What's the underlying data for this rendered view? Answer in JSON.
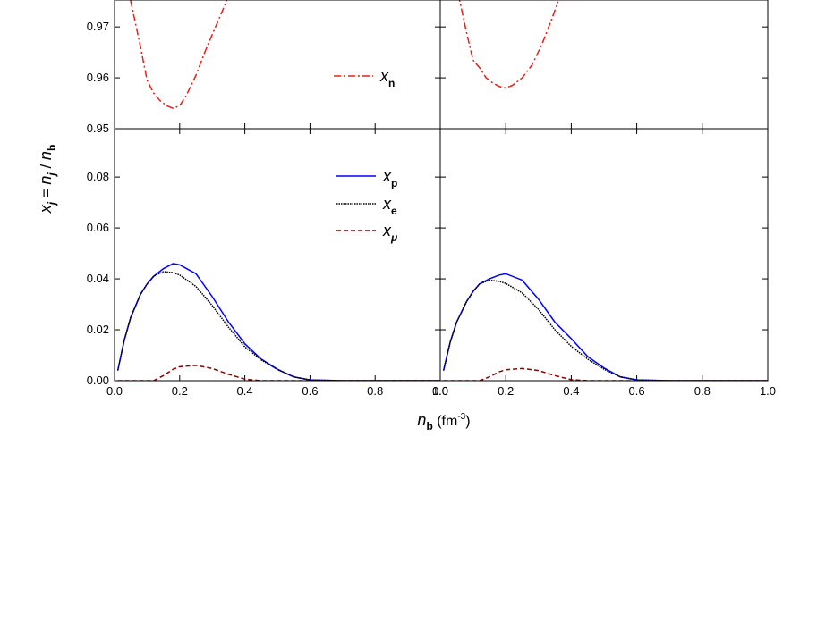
{
  "chart_data": [
    {
      "type": "line",
      "xlim": [
        0,
        1
      ],
      "ylim": [
        0.95,
        0.9753
      ],
      "yticks": [
        0.95,
        0.96,
        0.97
      ],
      "x": [
        0.04,
        0.06,
        0.08,
        0.1,
        0.12,
        0.14,
        0.16,
        0.18,
        0.2,
        0.22,
        0.25,
        0.28,
        0.31,
        0.34,
        0.36
      ],
      "series": [
        {
          "name": [
            "x",
            "n"
          ],
          "color": "#e8201a",
          "dash": "8,3,2,3",
          "values": [
            0.978,
            0.972,
            0.966,
            0.9595,
            0.957,
            0.9555,
            0.9545,
            0.954,
            0.9545,
            0.9565,
            0.9605,
            0.9655,
            0.97,
            0.9745,
            0.978
          ]
        }
      ]
    },
    {
      "type": "line",
      "xlim": [
        0,
        1
      ],
      "ylim": [
        0.95,
        0.9753
      ],
      "x": [
        0.04,
        0.06,
        0.08,
        0.1,
        0.12,
        0.14,
        0.16,
        0.18,
        0.2,
        0.22,
        0.25,
        0.28,
        0.31,
        0.34,
        0.36
      ],
      "series": [
        {
          "color": "#e8201a",
          "dash": "8,3,2,3",
          "values": [
            0.979,
            0.975,
            0.969,
            0.9635,
            0.962,
            0.96,
            0.959,
            0.9583,
            0.958,
            0.9585,
            0.96,
            0.9625,
            0.9665,
            0.9715,
            0.975
          ]
        }
      ]
    },
    {
      "type": "line",
      "xlim": [
        0,
        1
      ],
      "ylim": [
        0,
        0.099
      ],
      "xticks": [
        {
          "value": 0,
          "label": "0.0"
        },
        0.2,
        0.4,
        0.6,
        0.8,
        {
          "value": 1,
          "label": "1.0"
        }
      ],
      "yticks": [
        {
          "value": 0,
          "label": "0.00"
        },
        0.02,
        0.04,
        0.06,
        0.08
      ],
      "x": [
        0.01,
        0.03,
        0.05,
        0.08,
        0.1,
        0.12,
        0.15,
        0.18,
        0.2,
        0.25,
        0.3,
        0.35,
        0.4,
        0.45,
        0.5,
        0.55,
        0.6,
        0.7,
        0.8,
        0.9,
        1.0
      ],
      "series": [
        {
          "name": [
            "x",
            "p"
          ],
          "color": "#0000ff",
          "dash": "",
          "values": [
            0.004,
            0.016,
            0.025,
            0.034,
            0.038,
            0.041,
            0.044,
            0.046,
            0.0455,
            0.042,
            0.033,
            0.023,
            0.0145,
            0.0085,
            0.0045,
            0.0015,
            0.0003,
            0,
            0,
            0,
            0
          ]
        },
        {
          "name": [
            "x",
            "e"
          ],
          "color": "#000000",
          "dash": "1.5,1",
          "values": [
            0.004,
            0.016,
            0.025,
            0.034,
            0.038,
            0.041,
            0.0428,
            0.0425,
            0.0415,
            0.037,
            0.0295,
            0.021,
            0.0133,
            0.0082,
            0.0044,
            0.0015,
            0.0003,
            0,
            0,
            0,
            0
          ]
        },
        {
          "name": [
            "x",
            "μ"
          ],
          "color": "#8b0000",
          "dash": "5,3",
          "values": [
            0,
            0,
            0,
            0,
            0,
            0,
            0.002,
            0.0045,
            0.0055,
            0.006,
            0.0048,
            0.0025,
            0.0006,
            0,
            0,
            0,
            0,
            0,
            0,
            0,
            0
          ]
        }
      ]
    },
    {
      "type": "line",
      "xlim": [
        0,
        1
      ],
      "ylim": [
        0,
        0.099
      ],
      "xticks": [
        {
          "value": 0,
          "label": "0.0"
        },
        0.2,
        0.4,
        0.6,
        0.8,
        {
          "value": 1,
          "label": "1.0"
        }
      ],
      "x": [
        0.01,
        0.03,
        0.05,
        0.08,
        0.1,
        0.12,
        0.15,
        0.18,
        0.2,
        0.25,
        0.3,
        0.35,
        0.4,
        0.45,
        0.5,
        0.55,
        0.6,
        0.7,
        0.8,
        0.9,
        1.0
      ],
      "series": [
        {
          "color": "#0000ff",
          "dash": "",
          "values": [
            0.004,
            0.015,
            0.023,
            0.031,
            0.035,
            0.038,
            0.04,
            0.0415,
            0.042,
            0.0395,
            0.032,
            0.023,
            0.0165,
            0.0095,
            0.005,
            0.0015,
            0.0003,
            0,
            0,
            0,
            0
          ]
        },
        {
          "color": "#000000",
          "dash": "1.5,1",
          "values": [
            0.004,
            0.015,
            0.023,
            0.031,
            0.035,
            0.038,
            0.0395,
            0.039,
            0.0382,
            0.0345,
            0.028,
            0.02,
            0.0135,
            0.0085,
            0.0045,
            0.0015,
            0.0003,
            0,
            0,
            0,
            0
          ]
        },
        {
          "color": "#8b0000",
          "dash": "5,3",
          "values": [
            0,
            0,
            0,
            0,
            0,
            0,
            0.0015,
            0.0035,
            0.0043,
            0.0048,
            0.004,
            0.002,
            0.0004,
            0,
            0,
            0,
            0,
            0,
            0,
            0,
            0
          ]
        }
      ]
    }
  ],
  "y_label": [
    "x",
    "j",
    " = ",
    "n",
    "j",
    " / ",
    "n",
    "b"
  ],
  "x_label": [
    "n",
    "b",
    " (fm",
    "-3",
    ")"
  ]
}
